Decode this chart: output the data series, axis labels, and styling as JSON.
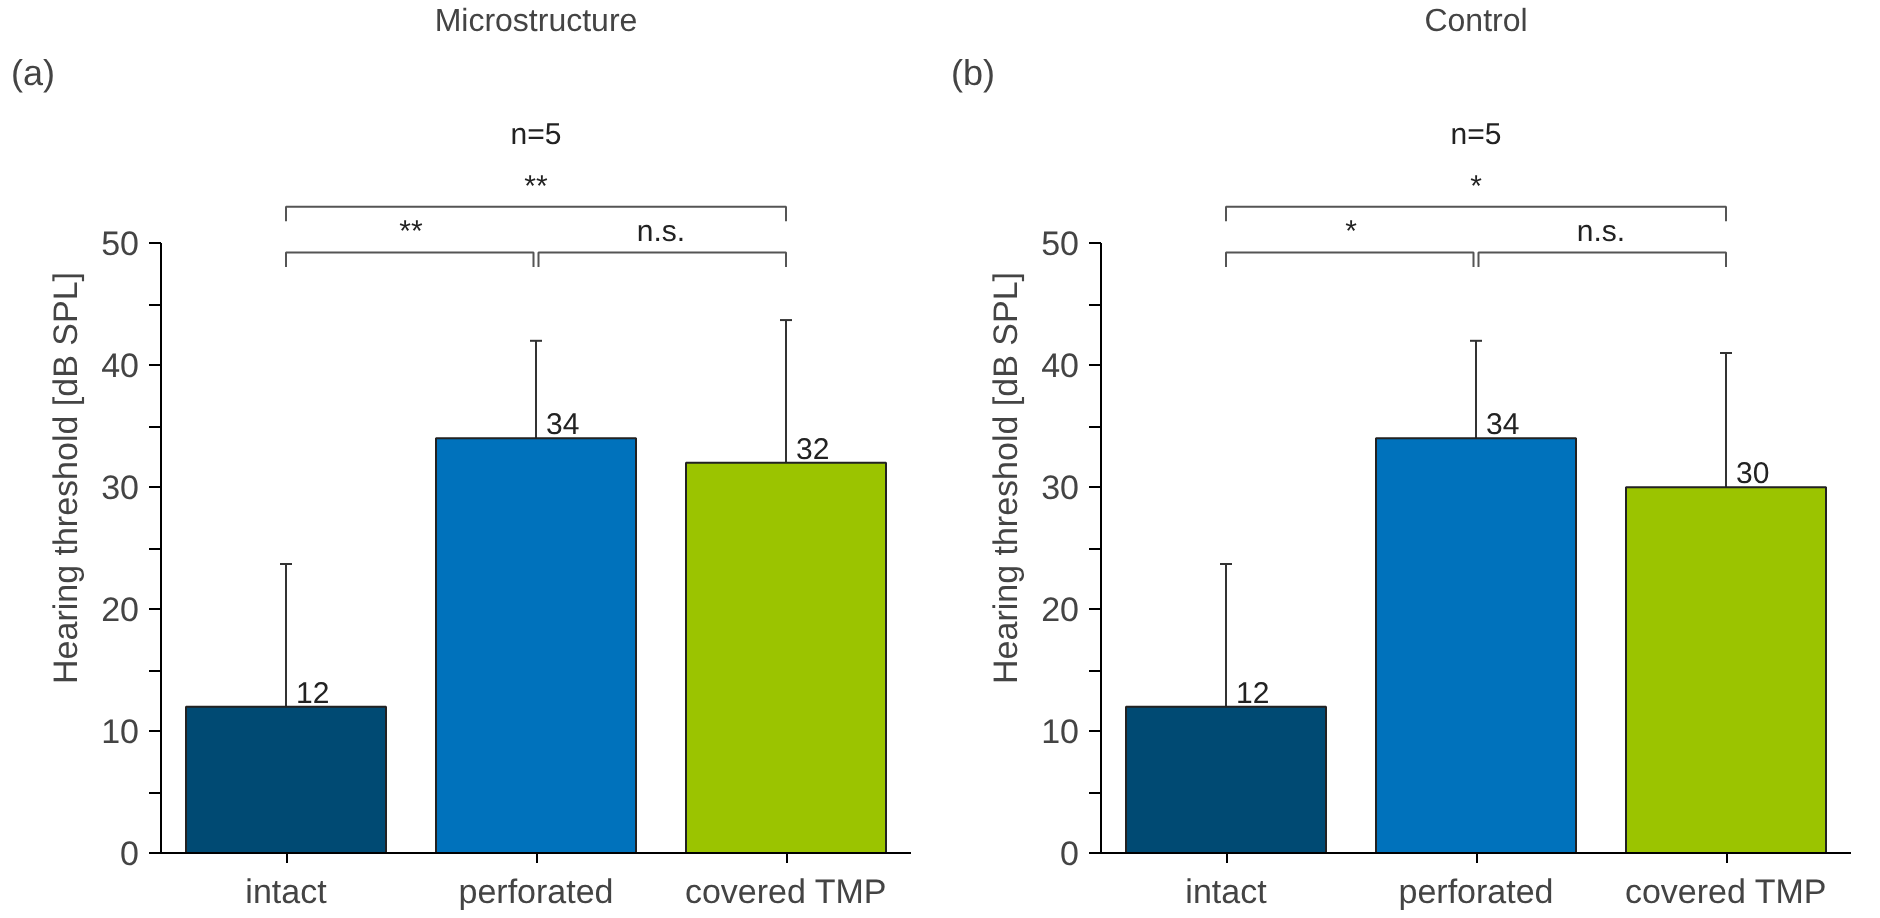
{
  "chart_data": [
    {
      "type": "bar",
      "title": "Microstructure",
      "ylabel": "Hearing threshold [dB SPL]",
      "categories": [
        "intact",
        "perforated",
        "covered TMP"
      ],
      "values": [
        12,
        34,
        32
      ],
      "colors": [
        "#004a73",
        "#0072bc",
        "#9bc400"
      ],
      "errors": [
        11.7,
        8,
        11.7
      ],
      "data_labels": true,
      "ylim": [
        0,
        50
      ],
      "yticks": [
        0,
        {
          "value": 5,
          "label": null
        },
        10,
        {
          "value": 15,
          "label": null
        },
        20,
        {
          "value": 25,
          "label": null
        },
        30,
        {
          "value": 35,
          "label": null
        },
        40,
        {
          "value": 45,
          "label": null
        },
        50
      ],
      "annotations": [
        "(a)",
        "n=5",
        "**",
        "**",
        "n.s."
      ]
    },
    {
      "type": "bar",
      "title": "Control",
      "ylabel": "Hearing threshold [dB SPL]",
      "categories": [
        "intact",
        "perforated",
        "covered TMP"
      ],
      "values": [
        12,
        34,
        30
      ],
      "colors": [
        "#004a73",
        "#0072bc",
        "#9bc400"
      ],
      "errors": [
        11.7,
        8,
        11
      ],
      "data_labels": true,
      "ylim": [
        0,
        50
      ],
      "yticks": [
        0,
        {
          "value": 5,
          "label": null
        },
        10,
        {
          "value": 15,
          "label": null
        },
        20,
        {
          "value": 25,
          "label": null
        },
        30,
        {
          "value": 35,
          "label": null
        },
        40,
        {
          "value": 45,
          "label": null
        },
        50
      ],
      "annotations": [
        "(b)",
        "n=5",
        "*",
        "*",
        "n.s."
      ]
    }
  ]
}
